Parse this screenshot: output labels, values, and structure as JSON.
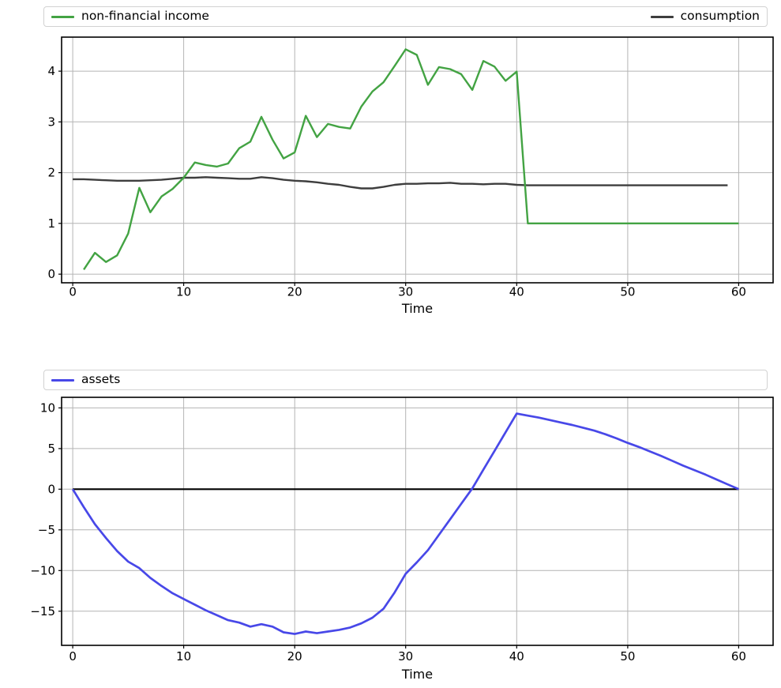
{
  "figure": {
    "background": "#ffffff",
    "grid_color": "#b4b4b4",
    "spine_color": "#000000",
    "tick_color": "#000000"
  },
  "chart_data": [
    {
      "type": "line",
      "title": "",
      "xlabel": "Time",
      "ylabel": "",
      "xlim": [
        -1,
        63.1
      ],
      "ylim": [
        -0.17,
        4.67
      ],
      "xticks": [
        0,
        10,
        20,
        30,
        40,
        50,
        60
      ],
      "yticks": [
        0,
        1,
        2,
        3,
        4
      ],
      "grid": true,
      "legend_position": "top, expanded full width, two columns",
      "series": [
        {
          "name": "non-financial income",
          "color": "#43a343",
          "width": 2.4,
          "zorder": 3,
          "x_start": 1,
          "values": [
            0.09,
            0.42,
            0.24,
            0.37,
            0.8,
            1.7,
            1.22,
            1.53,
            1.68,
            1.9,
            2.2,
            2.15,
            2.12,
            2.18,
            2.48,
            2.61,
            3.1,
            2.65,
            2.28,
            2.4,
            3.12,
            2.7,
            2.96,
            2.9,
            2.87,
            3.3,
            3.6,
            3.78,
            4.1,
            4.43,
            4.32,
            3.73,
            4.08,
            4.04,
            3.94,
            3.63,
            4.2,
            4.09,
            3.81,
            3.99,
            1.0,
            1.0,
            1.0,
            1.0,
            1.0,
            1.0,
            1.0,
            1.0,
            1.0,
            1.0,
            1.0,
            1.0,
            1.0,
            1.0,
            1.0,
            1.0,
            1.0,
            1.0,
            1.0,
            1.0
          ]
        },
        {
          "name": "consumption",
          "color": "#3e3e3e",
          "width": 2.4,
          "zorder": 2,
          "x_start": 0,
          "values": [
            1.87,
            1.87,
            1.86,
            1.85,
            1.84,
            1.84,
            1.84,
            1.85,
            1.86,
            1.88,
            1.9,
            1.9,
            1.91,
            1.9,
            1.89,
            1.88,
            1.88,
            1.91,
            1.89,
            1.86,
            1.84,
            1.83,
            1.81,
            1.78,
            1.76,
            1.72,
            1.69,
            1.69,
            1.72,
            1.76,
            1.78,
            1.78,
            1.79,
            1.79,
            1.8,
            1.78,
            1.78,
            1.77,
            1.78,
            1.78,
            1.76,
            1.75,
            1.75,
            1.75,
            1.75,
            1.75,
            1.75,
            1.75,
            1.75,
            1.75,
            1.75,
            1.75,
            1.75,
            1.75,
            1.75,
            1.75,
            1.75,
            1.75,
            1.75,
            1.75
          ]
        }
      ]
    },
    {
      "type": "line",
      "title": "",
      "xlabel": "Time",
      "ylabel": "",
      "xlim": [
        -1,
        63.1
      ],
      "ylim": [
        -19.2,
        11.3
      ],
      "xticks": [
        0,
        10,
        20,
        30,
        40,
        50,
        60
      ],
      "yticks": [
        -15,
        -10,
        -5,
        0,
        5,
        10
      ],
      "grid": true,
      "legend_position": "top, expanded full width, single entry",
      "baseline": {
        "y": 0,
        "x_range": [
          0,
          60
        ],
        "color": "#000000",
        "width": 2.2
      },
      "series": [
        {
          "name": "assets",
          "color": "#4848e8",
          "width": 2.7,
          "zorder": 3,
          "x_start": 0,
          "values": [
            0,
            -2.2,
            -4.3,
            -6.0,
            -7.6,
            -8.9,
            -9.7,
            -10.9,
            -11.9,
            -12.8,
            -13.5,
            -14.2,
            -14.9,
            -15.5,
            -16.1,
            -16.4,
            -16.9,
            -16.6,
            -16.9,
            -17.6,
            -17.8,
            -17.5,
            -17.7,
            -17.5,
            -17.3,
            -17.0,
            -16.5,
            -15.8,
            -14.7,
            -12.7,
            -10.4,
            -9.0,
            -7.5,
            -5.6,
            -3.7,
            -1.8,
            0.1,
            2.4,
            4.7,
            7.0,
            9.3,
            9.05,
            8.8,
            8.5,
            8.2,
            7.9,
            7.55,
            7.2,
            6.75,
            6.25,
            5.7,
            5.2,
            4.65,
            4.1,
            3.5,
            2.9,
            2.35,
            1.8,
            1.2,
            0.6,
            0
          ]
        }
      ]
    }
  ]
}
